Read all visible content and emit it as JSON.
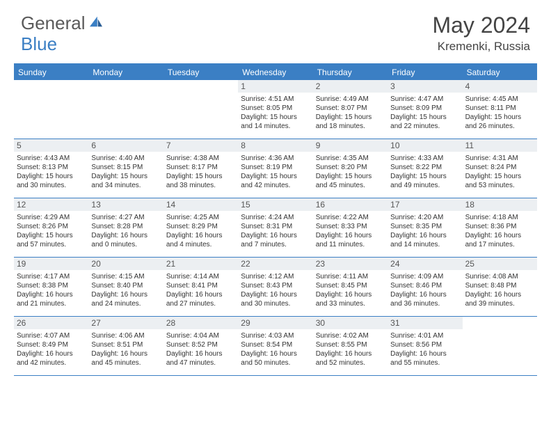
{
  "brand": {
    "name_a": "General",
    "name_b": "Blue"
  },
  "title": "May 2024",
  "location": "Kremenki, Russia",
  "colors": {
    "accent": "#3b7fc4",
    "header_bg": "#3b7fc4",
    "daynum_bg": "#eceff2",
    "text": "#333333",
    "logo_gray": "#5a5a5a"
  },
  "dow": [
    "Sunday",
    "Monday",
    "Tuesday",
    "Wednesday",
    "Thursday",
    "Friday",
    "Saturday"
  ],
  "labels": {
    "sunrise": "Sunrise:",
    "sunset": "Sunset:",
    "daylight": "Daylight:"
  },
  "weeks": [
    [
      {
        "day": "",
        "empty": true
      },
      {
        "day": "",
        "empty": true
      },
      {
        "day": "",
        "empty": true
      },
      {
        "day": "1",
        "sunrise": "4:51 AM",
        "sunset": "8:05 PM",
        "daylight": "15 hours and 14 minutes."
      },
      {
        "day": "2",
        "sunrise": "4:49 AM",
        "sunset": "8:07 PM",
        "daylight": "15 hours and 18 minutes."
      },
      {
        "day": "3",
        "sunrise": "4:47 AM",
        "sunset": "8:09 PM",
        "daylight": "15 hours and 22 minutes."
      },
      {
        "day": "4",
        "sunrise": "4:45 AM",
        "sunset": "8:11 PM",
        "daylight": "15 hours and 26 minutes."
      }
    ],
    [
      {
        "day": "5",
        "sunrise": "4:43 AM",
        "sunset": "8:13 PM",
        "daylight": "15 hours and 30 minutes."
      },
      {
        "day": "6",
        "sunrise": "4:40 AM",
        "sunset": "8:15 PM",
        "daylight": "15 hours and 34 minutes."
      },
      {
        "day": "7",
        "sunrise": "4:38 AM",
        "sunset": "8:17 PM",
        "daylight": "15 hours and 38 minutes."
      },
      {
        "day": "8",
        "sunrise": "4:36 AM",
        "sunset": "8:19 PM",
        "daylight": "15 hours and 42 minutes."
      },
      {
        "day": "9",
        "sunrise": "4:35 AM",
        "sunset": "8:20 PM",
        "daylight": "15 hours and 45 minutes."
      },
      {
        "day": "10",
        "sunrise": "4:33 AM",
        "sunset": "8:22 PM",
        "daylight": "15 hours and 49 minutes."
      },
      {
        "day": "11",
        "sunrise": "4:31 AM",
        "sunset": "8:24 PM",
        "daylight": "15 hours and 53 minutes."
      }
    ],
    [
      {
        "day": "12",
        "sunrise": "4:29 AM",
        "sunset": "8:26 PM",
        "daylight": "15 hours and 57 minutes."
      },
      {
        "day": "13",
        "sunrise": "4:27 AM",
        "sunset": "8:28 PM",
        "daylight": "16 hours and 0 minutes."
      },
      {
        "day": "14",
        "sunrise": "4:25 AM",
        "sunset": "8:29 PM",
        "daylight": "16 hours and 4 minutes."
      },
      {
        "day": "15",
        "sunrise": "4:24 AM",
        "sunset": "8:31 PM",
        "daylight": "16 hours and 7 minutes."
      },
      {
        "day": "16",
        "sunrise": "4:22 AM",
        "sunset": "8:33 PM",
        "daylight": "16 hours and 11 minutes."
      },
      {
        "day": "17",
        "sunrise": "4:20 AM",
        "sunset": "8:35 PM",
        "daylight": "16 hours and 14 minutes."
      },
      {
        "day": "18",
        "sunrise": "4:18 AM",
        "sunset": "8:36 PM",
        "daylight": "16 hours and 17 minutes."
      }
    ],
    [
      {
        "day": "19",
        "sunrise": "4:17 AM",
        "sunset": "8:38 PM",
        "daylight": "16 hours and 21 minutes."
      },
      {
        "day": "20",
        "sunrise": "4:15 AM",
        "sunset": "8:40 PM",
        "daylight": "16 hours and 24 minutes."
      },
      {
        "day": "21",
        "sunrise": "4:14 AM",
        "sunset": "8:41 PM",
        "daylight": "16 hours and 27 minutes."
      },
      {
        "day": "22",
        "sunrise": "4:12 AM",
        "sunset": "8:43 PM",
        "daylight": "16 hours and 30 minutes."
      },
      {
        "day": "23",
        "sunrise": "4:11 AM",
        "sunset": "8:45 PM",
        "daylight": "16 hours and 33 minutes."
      },
      {
        "day": "24",
        "sunrise": "4:09 AM",
        "sunset": "8:46 PM",
        "daylight": "16 hours and 36 minutes."
      },
      {
        "day": "25",
        "sunrise": "4:08 AM",
        "sunset": "8:48 PM",
        "daylight": "16 hours and 39 minutes."
      }
    ],
    [
      {
        "day": "26",
        "sunrise": "4:07 AM",
        "sunset": "8:49 PM",
        "daylight": "16 hours and 42 minutes."
      },
      {
        "day": "27",
        "sunrise": "4:06 AM",
        "sunset": "8:51 PM",
        "daylight": "16 hours and 45 minutes."
      },
      {
        "day": "28",
        "sunrise": "4:04 AM",
        "sunset": "8:52 PM",
        "daylight": "16 hours and 47 minutes."
      },
      {
        "day": "29",
        "sunrise": "4:03 AM",
        "sunset": "8:54 PM",
        "daylight": "16 hours and 50 minutes."
      },
      {
        "day": "30",
        "sunrise": "4:02 AM",
        "sunset": "8:55 PM",
        "daylight": "16 hours and 52 minutes."
      },
      {
        "day": "31",
        "sunrise": "4:01 AM",
        "sunset": "8:56 PM",
        "daylight": "16 hours and 55 minutes."
      },
      {
        "day": "",
        "empty": true
      }
    ]
  ]
}
